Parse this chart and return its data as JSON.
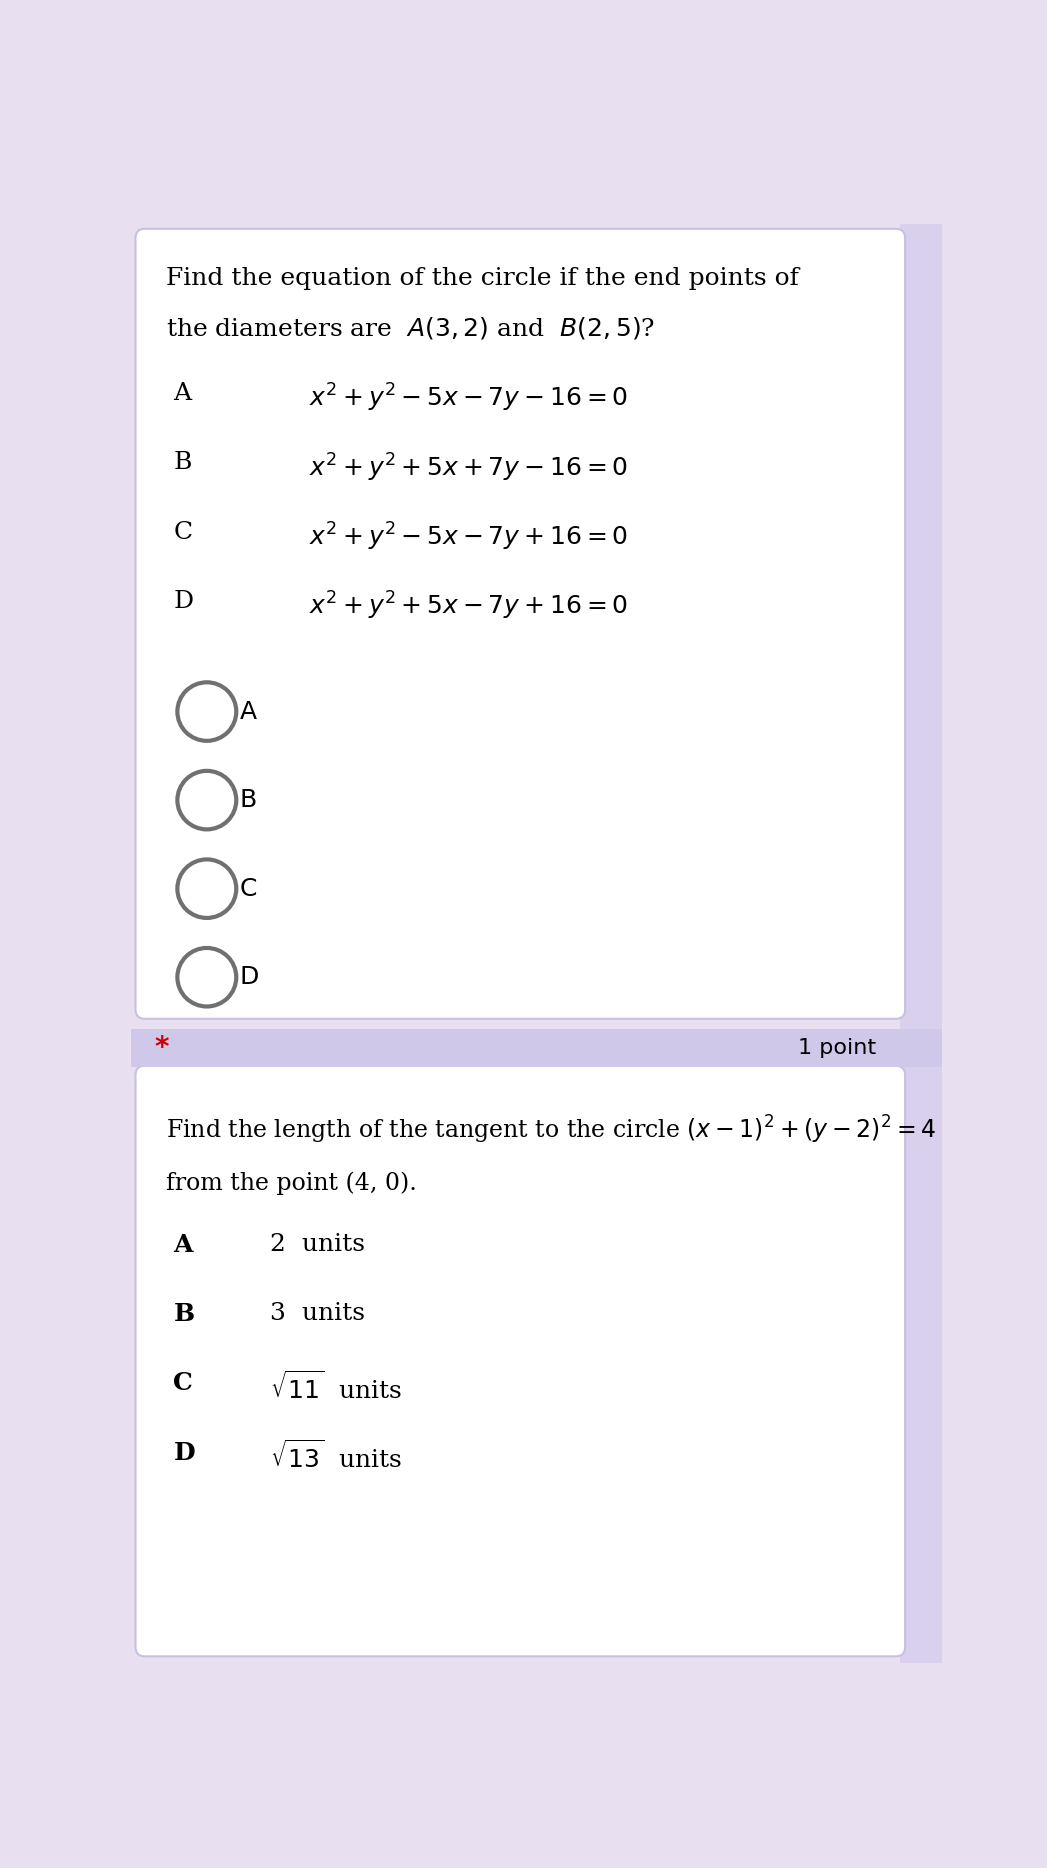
{
  "bg_color": "#e8e0f0",
  "card_bg": "#ffffff",
  "card_border": "#c8c0e0",
  "sidebar_color": "#d8d0ec",
  "separator_color": "#d0c8e8",
  "q1_title_line1": "Find the equation of the circle if the end points of",
  "q1_title_line2": "the diameters are  $A(3,2)$ and  $B(2,5)$?",
  "q1_options": [
    [
      "A",
      "$x^2+y^2-5x-7y-16=0$"
    ],
    [
      "B",
      "$x^2+y^2+5x+7y-16=0$"
    ],
    [
      "C",
      "$x^2+y^2-5x-7y+16=0$"
    ],
    [
      "D",
      "$x^2+y^2+5x-7y+16=0$"
    ]
  ],
  "q1_radio_labels": [
    "A",
    "B",
    "C",
    "D"
  ],
  "separator_label": "*",
  "point_label": "1 point",
  "q2_title_line1": "Find the length of the tangent to the circle $(x-1)^2+(y-2)^2=4$",
  "q2_title_line2": "from the point (4, 0).",
  "q2_options": [
    [
      "A",
      "2  units"
    ],
    [
      "B",
      "3  units"
    ],
    [
      "C",
      "$\\sqrt{11}$  units"
    ],
    [
      "D",
      "$\\sqrt{13}$  units"
    ]
  ],
  "title_fontsize": 18,
  "option_label_fontsize": 18,
  "option_text_fontsize": 18,
  "radio_label_fontsize": 18,
  "sep_fontsize": 18,
  "point_fontsize": 16,
  "q2_title_fontsize": 17,
  "radio_circle_color": "#707070",
  "text_color": "#000000",
  "star_color": "#cc0000"
}
